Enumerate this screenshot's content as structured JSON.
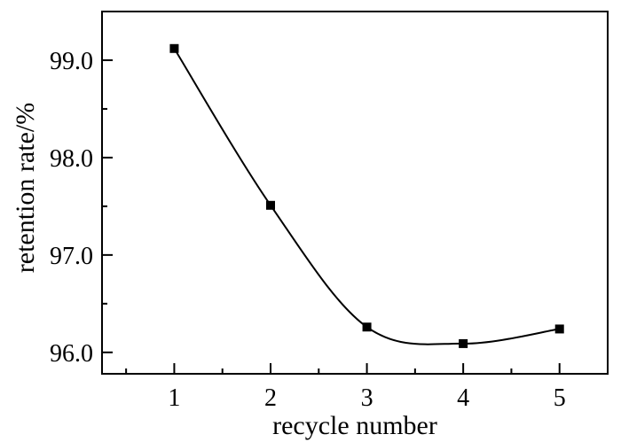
{
  "chart_data": {
    "type": "line",
    "x": [
      1,
      2,
      3,
      4,
      5
    ],
    "series": [
      {
        "values": [
          99.12,
          97.51,
          96.26,
          96.09,
          96.24
        ]
      }
    ],
    "xlabel": "recycle number",
    "ylabel": "retention rate/%",
    "xlim": [
      0.25,
      5.5
    ],
    "ylim": [
      95.78,
      99.5
    ],
    "xticks": [
      "1",
      "2",
      "3",
      "4",
      "5"
    ],
    "yticks": [
      "96.0",
      "97.0",
      "98.0",
      "99.0"
    ],
    "marker": "square",
    "smoothed": true,
    "grid": false,
    "legend": "none"
  }
}
